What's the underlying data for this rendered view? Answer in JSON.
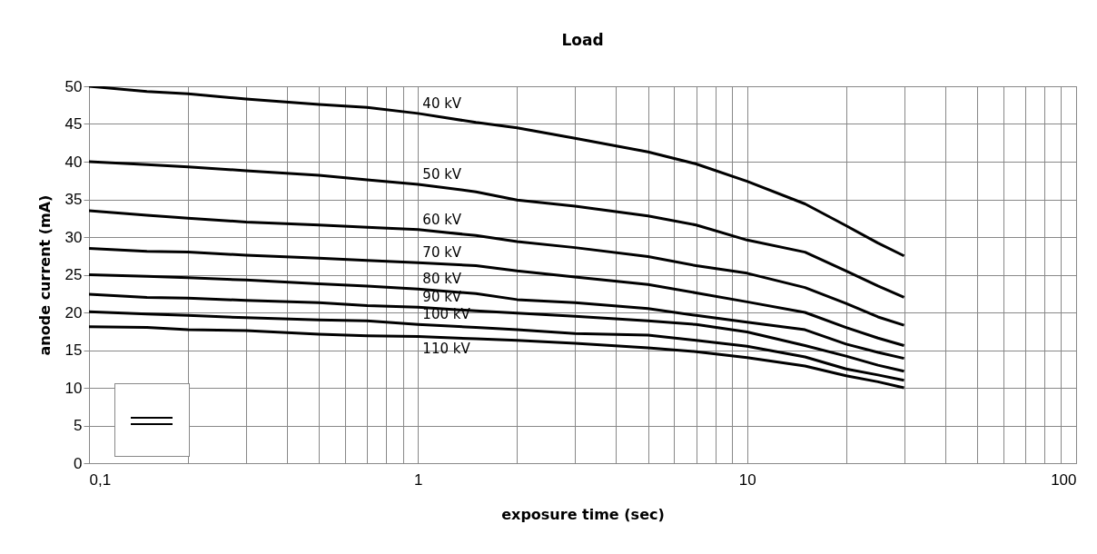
{
  "chart_data": {
    "type": "line",
    "title": "Load",
    "xlabel": "exposure time   (sec)",
    "ylabel": "anode current   (mA)",
    "x": [
      0.1,
      0.15,
      0.2,
      0.3,
      0.5,
      0.7,
      1,
      1.5,
      2,
      3,
      5,
      7,
      10,
      15,
      20,
      25,
      30
    ],
    "series": [
      {
        "name": "40 kV",
        "color": "#000000",
        "values": [
          50,
          49.3,
          49.0,
          48.3,
          47.6,
          47.2,
          46.4,
          45.2,
          44.5,
          43.1,
          41.3,
          39.7,
          37.4,
          34.4,
          31.5,
          29.2,
          27.5
        ]
      },
      {
        "name": "50 kV",
        "color": "#000000",
        "values": [
          40,
          39.6,
          39.3,
          38.8,
          38.2,
          37.6,
          37.0,
          36.0,
          34.9,
          34.1,
          32.8,
          31.6,
          29.6,
          28.0,
          25.5,
          23.5,
          22.0
        ]
      },
      {
        "name": "60 kV",
        "color": "#000000",
        "values": [
          33.5,
          32.9,
          32.5,
          32.0,
          31.6,
          31.3,
          31.0,
          30.2,
          29.4,
          28.6,
          27.4,
          26.2,
          25.2,
          23.3,
          21.2,
          19.4,
          18.3
        ]
      },
      {
        "name": "70 kV",
        "color": "#000000",
        "values": [
          28.5,
          28.1,
          28.0,
          27.6,
          27.2,
          26.9,
          26.6,
          26.2,
          25.5,
          24.7,
          23.7,
          22.6,
          21.4,
          20.0,
          18.0,
          16.6,
          15.6
        ]
      },
      {
        "name": "80 kV",
        "color": "#000000",
        "values": [
          25.0,
          24.8,
          24.6,
          24.3,
          23.8,
          23.5,
          23.1,
          22.5,
          21.7,
          21.3,
          20.5,
          19.6,
          18.7,
          17.7,
          15.8,
          14.7,
          13.9
        ]
      },
      {
        "name": "90 kV",
        "color": "#000000",
        "values": [
          22.4,
          22.0,
          21.9,
          21.6,
          21.3,
          20.9,
          20.7,
          20.2,
          19.9,
          19.5,
          18.9,
          18.4,
          17.4,
          15.6,
          14.2,
          13.0,
          12.2
        ]
      },
      {
        "name": "100 kV",
        "color": "#000000",
        "values": [
          20.1,
          19.8,
          19.6,
          19.3,
          19.0,
          18.9,
          18.4,
          18.0,
          17.7,
          17.2,
          17.0,
          16.3,
          15.5,
          14.1,
          12.5,
          11.7,
          11.0
        ]
      },
      {
        "name": "110 kV",
        "color": "#000000",
        "values": [
          18.1,
          18.0,
          17.7,
          17.6,
          17.1,
          16.9,
          16.8,
          16.5,
          16.3,
          15.9,
          15.3,
          14.8,
          14.0,
          12.9,
          11.6,
          10.8,
          10.0
        ]
      }
    ],
    "xlim": [
      0.1,
      100
    ],
    "ylim": [
      0,
      50
    ],
    "xticks": [
      {
        "value": 0.1,
        "label": "0,1"
      },
      {
        "value": 0.2,
        "label": null
      },
      {
        "value": 0.3,
        "label": null
      },
      {
        "value": 0.4,
        "label": null
      },
      {
        "value": 0.5,
        "label": null
      },
      {
        "value": 0.6,
        "label": null
      },
      {
        "value": 0.7,
        "label": null
      },
      {
        "value": 0.8,
        "label": null
      },
      {
        "value": 0.9,
        "label": null
      },
      1,
      {
        "value": 2,
        "label": null
      },
      {
        "value": 3,
        "label": null
      },
      {
        "value": 4,
        "label": null
      },
      {
        "value": 5,
        "label": null
      },
      {
        "value": 6,
        "label": null
      },
      {
        "value": 7,
        "label": null
      },
      {
        "value": 8,
        "label": null
      },
      {
        "value": 9,
        "label": null
      },
      10,
      {
        "value": 20,
        "label": null
      },
      {
        "value": 30,
        "label": null
      },
      {
        "value": 40,
        "label": null
      },
      {
        "value": 50,
        "label": null
      },
      {
        "value": 60,
        "label": null
      },
      {
        "value": 70,
        "label": null
      },
      {
        "value": 80,
        "label": null
      },
      {
        "value": 90,
        "label": null
      },
      100
    ],
    "yticks": [
      0,
      5,
      10,
      15,
      20,
      25,
      30,
      35,
      40,
      45,
      50
    ],
    "log": "x",
    "grid": true,
    "line_style": "solid"
  }
}
